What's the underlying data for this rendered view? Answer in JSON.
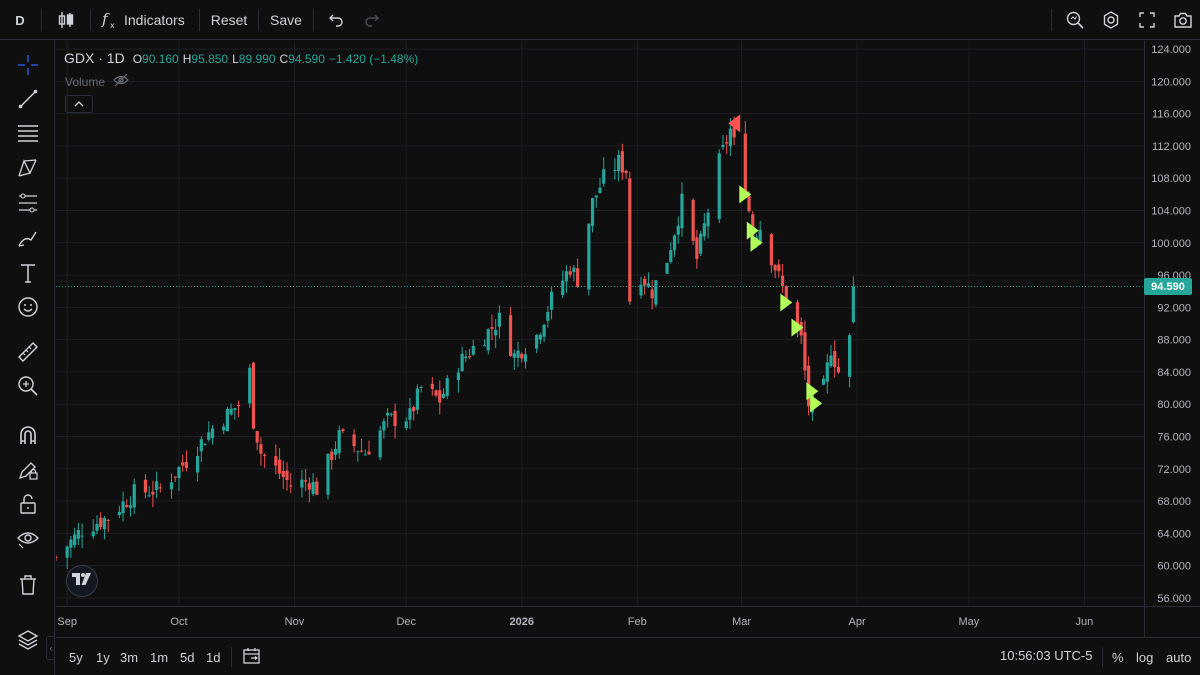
{
  "toolbar": {
    "interval": "D",
    "indicators_label": "Indicators",
    "reset_label": "Reset",
    "save_label": "Save"
  },
  "left_tools": [
    "crosshair-icon",
    "trend-line-icon",
    "horizontal-lines-icon",
    "pattern-icon",
    "fib-retracement-icon",
    "brush-icon",
    "text-icon",
    "emoji-icon",
    "ruler-icon",
    "zoom-in-icon",
    "magnet-icon",
    "lock-draw-icon",
    "lock-icon",
    "eye-icon",
    "trash-icon",
    "layers-icon"
  ],
  "legend": {
    "symbol": "GDX · 1D",
    "o_label": "O",
    "o_value": "90.160",
    "h_label": "H",
    "h_value": "95.850",
    "l_label": "L",
    "l_value": "89.990",
    "c_label": "C",
    "c_value": "94.590",
    "change": "−1.420 (−1.48%)",
    "volume_label": "Volume"
  },
  "last_price": "94.590",
  "colors": {
    "up": "#26a69a",
    "down": "#ef5350",
    "buy_marker": "#b2ff59",
    "sell_marker": "#ff5252",
    "background": "#0f0f0f"
  },
  "chart_data": {
    "type": "candlestick",
    "symbol": "GDX",
    "interval": "1D",
    "y_axis": {
      "min": 55,
      "max": 125,
      "ticks": [
        56,
        60,
        64,
        68,
        72,
        76,
        80,
        84,
        88,
        92,
        96,
        100,
        104,
        108,
        112,
        116,
        120,
        124
      ]
    },
    "y_tick_labels": [
      "56.000",
      "60.000",
      "64.000",
      "68.000",
      "72.000",
      "76.000",
      "80.000",
      "84.000",
      "88.000",
      "92.000",
      "96.000",
      "100.000",
      "104.000",
      "108.000",
      "112.000",
      "116.000",
      "120.000",
      "124.000"
    ],
    "x_axis": {
      "start": "2025-08-29",
      "end": "2026-06-17",
      "ticks": [
        {
          "date": "2025-09-01",
          "label": "Sep",
          "bold": false
        },
        {
          "date": "2025-10-01",
          "label": "Oct",
          "bold": false
        },
        {
          "date": "2025-11-01",
          "label": "Nov",
          "bold": false
        },
        {
          "date": "2025-12-01",
          "label": "Dec",
          "bold": false
        },
        {
          "date": "2026-01-01",
          "label": "2026",
          "bold": true
        },
        {
          "date": "2026-02-01",
          "label": "Feb",
          "bold": false
        },
        {
          "date": "2026-03-01",
          "label": "Mar",
          "bold": false
        },
        {
          "date": "2026-04-01",
          "label": "Apr",
          "bold": false
        },
        {
          "date": "2026-05-01",
          "label": "May",
          "bold": false
        },
        {
          "date": "2026-06-01",
          "label": "Jun",
          "bold": false
        }
      ]
    },
    "current_price_line": 94.59,
    "anchors": [
      [
        "2025-08-29",
        61
      ],
      [
        "2025-09-05",
        64.5
      ],
      [
        "2025-09-12",
        66
      ],
      [
        "2025-09-19",
        69
      ],
      [
        "2025-09-26",
        69.5
      ],
      [
        "2025-10-03",
        73
      ],
      [
        "2025-10-10",
        77
      ],
      [
        "2025-10-17",
        80
      ],
      [
        "2025-10-20",
        84
      ],
      [
        "2025-10-21",
        78
      ],
      [
        "2025-10-23",
        74
      ],
      [
        "2025-10-31",
        70
      ],
      [
        "2025-11-05",
        70.5
      ],
      [
        "2025-11-07",
        69.5
      ],
      [
        "2025-11-13",
        76
      ],
      [
        "2025-11-20",
        74
      ],
      [
        "2025-11-26",
        78
      ],
      [
        "2025-12-02",
        78.5
      ],
      [
        "2025-12-05",
        82
      ],
      [
        "2025-12-10",
        80.5
      ],
      [
        "2025-12-15",
        85
      ],
      [
        "2025-12-19",
        87
      ],
      [
        "2025-12-26",
        90.5
      ],
      [
        "2025-12-30",
        86
      ],
      [
        "2026-01-05",
        88.5
      ],
      [
        "2026-01-09",
        93
      ],
      [
        "2026-01-14",
        97
      ],
      [
        "2026-01-16",
        95.5
      ],
      [
        "2026-01-20",
        105
      ],
      [
        "2026-01-23",
        108
      ],
      [
        "2026-01-27",
        110
      ],
      [
        "2026-01-29",
        109
      ],
      [
        "2026-01-30",
        93
      ],
      [
        "2026-02-02",
        96
      ],
      [
        "2026-02-05",
        94
      ],
      [
        "2026-02-09",
        98
      ],
      [
        "2026-02-13",
        105
      ],
      [
        "2026-02-17",
        98
      ],
      [
        "2026-02-23",
        110
      ],
      [
        "2026-02-26",
        114
      ],
      [
        "2026-03-02",
        107
      ],
      [
        "2026-03-04",
        101
      ],
      [
        "2026-03-06",
        102
      ],
      [
        "2026-03-10",
        97
      ],
      [
        "2026-03-13",
        93
      ],
      [
        "2026-03-17",
        88
      ],
      [
        "2026-03-19",
        80
      ],
      [
        "2026-03-23",
        82
      ],
      [
        "2026-03-25",
        87
      ],
      [
        "2026-03-27",
        84
      ],
      [
        "2026-03-30",
        88
      ],
      [
        "2026-03-31",
        94.59
      ]
    ],
    "markers": [
      {
        "date": "2026-02-27",
        "price": 114.8,
        "type": "sell"
      },
      {
        "date": "2026-03-02",
        "price": 106.0,
        "type": "buy"
      },
      {
        "date": "2026-03-04",
        "price": 101.5,
        "type": "buy"
      },
      {
        "date": "2026-03-05",
        "price": 100.0,
        "type": "buy"
      },
      {
        "date": "2026-03-13",
        "price": 92.6,
        "type": "buy"
      },
      {
        "date": "2026-03-16",
        "price": 89.5,
        "type": "buy"
      },
      {
        "date": "2026-03-20",
        "price": 81.6,
        "type": "buy"
      },
      {
        "date": "2026-03-21",
        "price": 80.1,
        "type": "buy"
      }
    ]
  },
  "bottom": {
    "ranges": [
      "5y",
      "1y",
      "3m",
      "1m",
      "5d",
      "1d"
    ],
    "clock": "10:56:03 UTC-5",
    "percent": "%",
    "log": "log",
    "auto": "auto"
  }
}
